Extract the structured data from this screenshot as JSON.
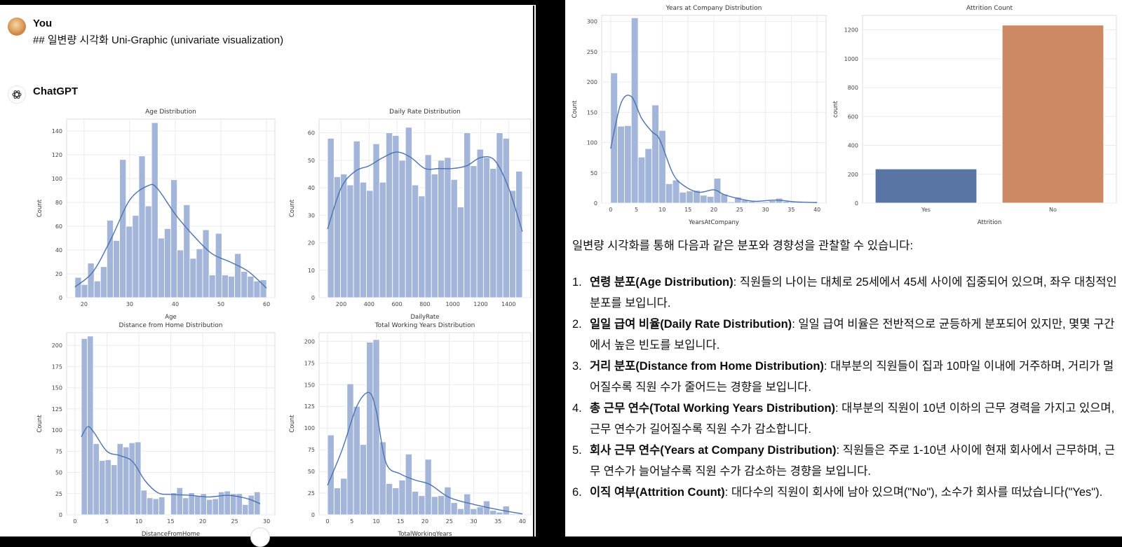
{
  "conversation": {
    "user": {
      "name": "You",
      "message": "## 일변량 시각화 Uni-Graphic (univariate visualization)"
    },
    "assistant": {
      "name": "ChatGPT",
      "summary_intro": "일변량 시각화를 통해 다음과 같은 분포와 경향성을 관찰할 수 있습니다:",
      "findings": [
        {
          "num": "1.",
          "title": "연령 분포(Age Distribution)",
          "text": ": 직원들의 나이는 대체로 25세에서 45세 사이에 집중되어 있으며, 좌우 대칭적인 분포를 보입니다."
        },
        {
          "num": "2.",
          "title": "일일 급여 비율(Daily Rate Distribution)",
          "text": ": 일일 급여 비율은 전반적으로 균등하게 분포되어 있지만, 몇몇 구간에서 높은 빈도를 보입니다."
        },
        {
          "num": "3.",
          "title": "거리 분포(Distance from Home Distribution)",
          "text": ": 대부분의 직원들이 집과 10마일 이내에 거주하며, 거리가 멀어질수록 직원 수가 줄어드는 경향을 보입니다."
        },
        {
          "num": "4.",
          "title": "총 근무 연수(Total Working Years Distribution)",
          "text": ": 대부분의 직원이 10년 이하의 근무 경력을 가지고 있으며, 근무 연수가 길어질수록 직원 수가 감소합니다."
        },
        {
          "num": "5.",
          "title": "회사 근무 연수(Years at Company Distribution)",
          "text": ": 직원들은 주로 1-10년 사이에 현재 회사에서 근무하며, 근무 연수가 늘어날수록 직원 수가 감소하는 경향을 보입니다."
        },
        {
          "num": "6.",
          "title": "이직 여부(Attrition Count)",
          "text": ": 대다수의 직원이 회사에 남아 있으며(\"No\"), 소수가 회사를 떠났습니다(\"Yes\")."
        }
      ]
    }
  },
  "colors": {
    "hist_bar": "#a3b6d9",
    "kde_line": "#4c72b0",
    "yes_bar": "#5975a4",
    "no_bar": "#cc8963",
    "grid": "#ebebeb"
  },
  "chart_data": [
    {
      "type": "bar",
      "title": "Age Distribution",
      "xlabel": "Age",
      "ylabel": "Count",
      "xlim": [
        18,
        60
      ],
      "ylim": [
        0,
        150
      ],
      "xticks": [
        20,
        30,
        40,
        50,
        60
      ],
      "yticks": [
        0,
        20,
        40,
        60,
        80,
        100,
        120,
        140
      ],
      "bin_start": 18,
      "bin_end": 60,
      "values": [
        17,
        11,
        29,
        14,
        26,
        65,
        48,
        116,
        60,
        69,
        119,
        77,
        147,
        50,
        58,
        99,
        40,
        78,
        33,
        41,
        57,
        19,
        54,
        19,
        18,
        37,
        22,
        18,
        14,
        15
      ],
      "kde": [
        [
          18,
          9
        ],
        [
          22,
          22
        ],
        [
          26,
          50
        ],
        [
          30,
          82
        ],
        [
          34,
          94
        ],
        [
          36,
          92
        ],
        [
          40,
          70
        ],
        [
          44,
          52
        ],
        [
          48,
          37
        ],
        [
          52,
          30
        ],
        [
          56,
          22
        ],
        [
          60,
          8
        ]
      ],
      "grid": true
    },
    {
      "type": "bar",
      "title": "Daily Rate Distribution",
      "xlabel": "DailyRate",
      "ylabel": "Count",
      "xlim": [
        102,
        1499
      ],
      "ylim": [
        0,
        65
      ],
      "xticks": [
        200,
        400,
        600,
        800,
        1000,
        1200,
        1400
      ],
      "yticks": [
        0,
        10,
        20,
        30,
        40,
        50,
        60
      ],
      "bin_start": 102,
      "bin_end": 1499,
      "values": [
        58,
        44,
        45,
        41,
        57,
        42,
        39,
        56,
        42,
        60,
        59,
        50,
        62,
        41,
        37,
        52,
        45,
        50,
        51,
        43,
        33,
        60,
        48,
        54,
        51,
        47,
        60,
        58,
        39,
        46
      ],
      "kde": [
        [
          102,
          25
        ],
        [
          200,
          40
        ],
        [
          300,
          46
        ],
        [
          400,
          48
        ],
        [
          500,
          51
        ],
        [
          600,
          53
        ],
        [
          700,
          51
        ],
        [
          800,
          47
        ],
        [
          900,
          47
        ],
        [
          1000,
          47
        ],
        [
          1100,
          48
        ],
        [
          1200,
          51
        ],
        [
          1300,
          50
        ],
        [
          1400,
          40
        ],
        [
          1499,
          24
        ]
      ],
      "grid": true
    },
    {
      "type": "bar",
      "title": "Distance from Home Distribution",
      "xlabel": "DistanceFromHome",
      "ylabel": "Count",
      "xlim": [
        0,
        30
      ],
      "ylim": [
        0,
        215
      ],
      "xticks": [
        0,
        5,
        10,
        15,
        20,
        25,
        30
      ],
      "yticks": [
        0,
        25,
        50,
        75,
        100,
        125,
        150,
        175,
        200
      ],
      "bin_start": 1,
      "bin_end": 29,
      "values": [
        208,
        211,
        84,
        64,
        65,
        59,
        84,
        80,
        85,
        86,
        29,
        20,
        19,
        21,
        0,
        26,
        32,
        20,
        26,
        22,
        25,
        18,
        19,
        27,
        28,
        25,
        25,
        12,
        23,
        27
      ],
      "kde": [
        [
          1,
          92
        ],
        [
          2,
          104
        ],
        [
          3,
          97
        ],
        [
          5,
          75
        ],
        [
          7,
          70
        ],
        [
          9,
          63
        ],
        [
          11,
          40
        ],
        [
          13,
          26
        ],
        [
          15,
          24
        ],
        [
          18,
          23
        ],
        [
          21,
          21
        ],
        [
          24,
          23
        ],
        [
          27,
          19
        ],
        [
          29,
          13
        ]
      ],
      "grid": true
    },
    {
      "type": "bar",
      "title": "Total Working Years Distribution",
      "xlabel": "TotalWorkingYears",
      "ylabel": "Count",
      "xlim": [
        0,
        40
      ],
      "ylim": [
        0,
        210
      ],
      "xticks": [
        0,
        5,
        10,
        15,
        20,
        25,
        30,
        35,
        40
      ],
      "yticks": [
        0,
        25,
        50,
        75,
        100,
        125,
        150,
        175,
        200
      ],
      "bin_start": 0,
      "bin_end": 40,
      "values": [
        92,
        31,
        42,
        151,
        125,
        81,
        199,
        202,
        84,
        36,
        31,
        40,
        70,
        27,
        22,
        64,
        21,
        22,
        32,
        14,
        7,
        24,
        7,
        9,
        16,
        5,
        3,
        10,
        1,
        1
      ],
      "kde": [
        [
          0,
          34
        ],
        [
          3,
          75
        ],
        [
          6,
          125
        ],
        [
          8.5,
          141
        ],
        [
          10,
          120
        ],
        [
          12,
          60
        ],
        [
          15,
          47
        ],
        [
          18,
          40
        ],
        [
          21,
          35
        ],
        [
          25,
          20
        ],
        [
          30,
          12
        ],
        [
          35,
          6
        ],
        [
          40,
          1
        ]
      ],
      "grid": true
    },
    {
      "type": "bar",
      "title": "Years at Company Distribution",
      "xlabel": "YearsAtCompany",
      "ylabel": "Count",
      "xlim": [
        0,
        40
      ],
      "ylim": [
        0,
        310
      ],
      "xticks": [
        0,
        5,
        10,
        15,
        20,
        25,
        30,
        35,
        40
      ],
      "yticks": [
        0,
        50,
        100,
        150,
        200,
        250,
        300
      ],
      "bin_start": 0,
      "bin_end": 40,
      "values": [
        215,
        127,
        128,
        306,
        76,
        90,
        162,
        120,
        32,
        38,
        18,
        20,
        21,
        13,
        11,
        41,
        15,
        2,
        10,
        5,
        3,
        2,
        2,
        4,
        8,
        3,
        2,
        2,
        1,
        2
      ],
      "kde": [
        [
          0,
          90
        ],
        [
          2,
          165
        ],
        [
          4,
          176
        ],
        [
          6,
          140
        ],
        [
          8,
          118
        ],
        [
          9.5,
          105
        ],
        [
          12,
          50
        ],
        [
          14,
          30
        ],
        [
          17,
          18
        ],
        [
          20,
          22
        ],
        [
          22,
          14
        ],
        [
          25,
          7
        ],
        [
          28,
          3
        ],
        [
          32,
          5
        ],
        [
          36,
          2
        ],
        [
          40,
          1
        ]
      ],
      "grid": true
    },
    {
      "type": "bar",
      "title": "Attrition Count",
      "xlabel": "Attrition",
      "ylabel": "count",
      "categories": [
        "Yes",
        "No"
      ],
      "values": [
        237,
        1233
      ],
      "ylim": [
        0,
        1300
      ],
      "yticks": [
        0,
        200,
        400,
        600,
        800,
        1000,
        1200
      ],
      "grid": true
    }
  ]
}
